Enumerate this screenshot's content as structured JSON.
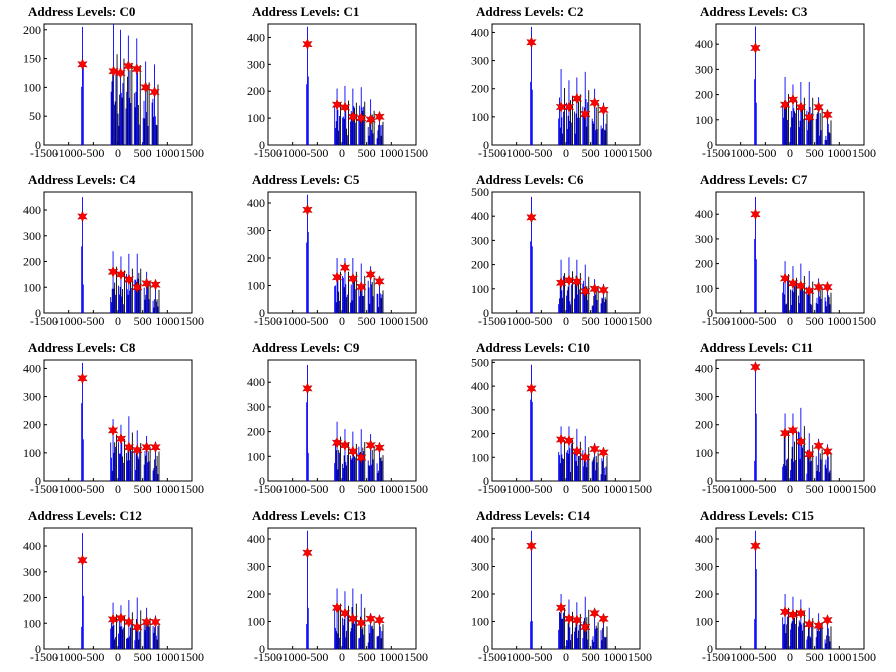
{
  "colors": {
    "bar": "#0000ff",
    "bar_dark": "#000000",
    "marker": "#ff0000",
    "axis": "#000000"
  },
  "chart_data": [
    {
      "type": "bar",
      "title": "Address Levels: C0",
      "xlim": [
        -1500,
        1500
      ],
      "xticks": [
        -1500,
        -1000,
        -500,
        0,
        500,
        1000,
        1500
      ],
      "ylim": [
        0,
        210
      ],
      "yticks": [
        0,
        50,
        100,
        150,
        200
      ],
      "peaks_x": [
        -720,
        -90,
        50,
        210,
        380,
        560,
        740
      ],
      "bar_tops": [
        205,
        210,
        200,
        190,
        185,
        145,
        140
      ],
      "markers_y": [
        140,
        128,
        125,
        137,
        132,
        100,
        92
      ]
    },
    {
      "type": "bar",
      "title": "Address Levels: C1",
      "xlim": [
        -1500,
        1500
      ],
      "xticks": [
        -1500,
        -1000,
        -500,
        0,
        500,
        1000,
        1500
      ],
      "ylim": [
        0,
        450
      ],
      "yticks": [
        0,
        100,
        200,
        300,
        400
      ],
      "peaks_x": [
        -700,
        -100,
        60,
        220,
        390,
        580,
        760
      ],
      "bar_tops": [
        440,
        210,
        220,
        210,
        215,
        170,
        115
      ],
      "markers_y": [
        375,
        150,
        140,
        105,
        100,
        95,
        105
      ]
    },
    {
      "type": "bar",
      "title": "Address Levels: C2",
      "xlim": [
        -1500,
        1500
      ],
      "xticks": [
        -1500,
        -1000,
        -500,
        0,
        500,
        1000,
        1500
      ],
      "ylim": [
        0,
        430
      ],
      "yticks": [
        0,
        100,
        200,
        300,
        400
      ],
      "peaks_x": [
        -700,
        -100,
        60,
        220,
        390,
        580,
        760
      ],
      "bar_tops": [
        420,
        270,
        230,
        240,
        260,
        200,
        150
      ],
      "markers_y": [
        365,
        135,
        135,
        165,
        110,
        150,
        125
      ]
    },
    {
      "type": "bar",
      "title": "Address Levels: C3",
      "xlim": [
        -1500,
        1500
      ],
      "xticks": [
        -1500,
        -1000,
        -500,
        0,
        500,
        1000,
        1500
      ],
      "ylim": [
        0,
        480
      ],
      "yticks": [
        0,
        100,
        200,
        300,
        400
      ],
      "peaks_x": [
        -700,
        -100,
        60,
        220,
        390,
        580,
        760
      ],
      "bar_tops": [
        470,
        270,
        240,
        250,
        250,
        190,
        130
      ],
      "markers_y": [
        385,
        160,
        180,
        150,
        110,
        150,
        120
      ]
    },
    {
      "type": "bar",
      "title": "Address Levels: C4",
      "xlim": [
        -1500,
        1500
      ],
      "xticks": [
        -1500,
        -1000,
        -500,
        0,
        500,
        1000,
        1500
      ],
      "ylim": [
        0,
        470
      ],
      "yticks": [
        0,
        100,
        200,
        300,
        400
      ],
      "peaks_x": [
        -720,
        -100,
        60,
        220,
        390,
        580,
        760
      ],
      "bar_tops": [
        450,
        240,
        220,
        230,
        230,
        160,
        120
      ],
      "markers_y": [
        375,
        160,
        150,
        130,
        100,
        115,
        110
      ]
    },
    {
      "type": "bar",
      "title": "Address Levels: C5",
      "xlim": [
        -1500,
        1500
      ],
      "xticks": [
        -1500,
        -1000,
        -500,
        0,
        500,
        1000,
        1500
      ],
      "ylim": [
        0,
        440
      ],
      "yticks": [
        0,
        100,
        200,
        300,
        400
      ],
      "peaks_x": [
        -700,
        -100,
        60,
        220,
        390,
        580,
        760
      ],
      "bar_tops": [
        430,
        200,
        200,
        200,
        180,
        170,
        110
      ],
      "markers_y": [
        375,
        130,
        165,
        125,
        95,
        140,
        115
      ]
    },
    {
      "type": "bar",
      "title": "Address Levels: C6",
      "xlim": [
        -1500,
        1500
      ],
      "xticks": [
        -1500,
        -1000,
        -500,
        0,
        500,
        1000,
        1500
      ],
      "ylim": [
        0,
        500
      ],
      "yticks": [
        0,
        100,
        200,
        300,
        400,
        500
      ],
      "peaks_x": [
        -700,
        -100,
        60,
        220,
        390,
        580,
        760
      ],
      "bar_tops": [
        480,
        220,
        230,
        220,
        200,
        140,
        120
      ],
      "markers_y": [
        395,
        125,
        135,
        130,
        90,
        100,
        95
      ]
    },
    {
      "type": "bar",
      "title": "Address Levels: C7",
      "xlim": [
        -1500,
        1500
      ],
      "xticks": [
        -1500,
        -1000,
        -500,
        0,
        500,
        1000,
        1500
      ],
      "ylim": [
        0,
        490
      ],
      "yticks": [
        0,
        100,
        200,
        300,
        400
      ],
      "peaks_x": [
        -700,
        -100,
        60,
        220,
        390,
        580,
        760
      ],
      "bar_tops": [
        470,
        210,
        190,
        200,
        170,
        140,
        110
      ],
      "markers_y": [
        400,
        140,
        120,
        110,
        90,
        105,
        105
      ]
    },
    {
      "type": "bar",
      "title": "Address Levels: C8",
      "xlim": [
        -1500,
        1500
      ],
      "xticks": [
        -1500,
        -1000,
        -500,
        0,
        500,
        1000,
        1500
      ],
      "ylim": [
        0,
        430
      ],
      "yticks": [
        0,
        100,
        200,
        300,
        400
      ],
      "peaks_x": [
        -720,
        -100,
        60,
        220,
        390,
        580,
        760
      ],
      "bar_tops": [
        420,
        220,
        200,
        230,
        180,
        160,
        140
      ],
      "markers_y": [
        365,
        180,
        150,
        120,
        110,
        120,
        120
      ]
    },
    {
      "type": "bar",
      "title": "Address Levels: C9",
      "xlim": [
        -1500,
        1500
      ],
      "xticks": [
        -1500,
        -1000,
        -500,
        0,
        500,
        1000,
        1500
      ],
      "ylim": [
        0,
        490
      ],
      "yticks": [
        0,
        100,
        200,
        300,
        400
      ],
      "peaks_x": [
        -700,
        -100,
        60,
        220,
        390,
        580,
        760
      ],
      "bar_tops": [
        470,
        240,
        210,
        200,
        210,
        190,
        140
      ],
      "markers_y": [
        375,
        155,
        145,
        120,
        95,
        145,
        135
      ]
    },
    {
      "type": "bar",
      "title": "Address Levels: C10",
      "xlim": [
        -1500,
        1500
      ],
      "xticks": [
        -1500,
        -1000,
        -500,
        0,
        500,
        1000,
        1500
      ],
      "ylim": [
        0,
        510
      ],
      "yticks": [
        0,
        100,
        200,
        300,
        400,
        500
      ],
      "peaks_x": [
        -700,
        -100,
        60,
        220,
        390,
        580,
        760
      ],
      "bar_tops": [
        490,
        230,
        230,
        220,
        190,
        160,
        140
      ],
      "markers_y": [
        390,
        175,
        170,
        125,
        100,
        135,
        120
      ]
    },
    {
      "type": "bar",
      "title": "Address Levels: C11",
      "xlim": [
        -1500,
        1500
      ],
      "xticks": [
        -1500,
        -1000,
        -500,
        0,
        500,
        1000,
        1500
      ],
      "ylim": [
        0,
        430
      ],
      "yticks": [
        0,
        100,
        200,
        300,
        400
      ],
      "peaks_x": [
        -700,
        -100,
        60,
        220,
        390,
        580,
        760
      ],
      "bar_tops": [
        420,
        240,
        240,
        260,
        170,
        150,
        130
      ],
      "markers_y": [
        405,
        170,
        180,
        140,
        95,
        125,
        105
      ]
    },
    {
      "type": "bar",
      "title": "Address Levels: C12",
      "xlim": [
        -1500,
        1500
      ],
      "xticks": [
        -1500,
        -1000,
        -500,
        0,
        500,
        1000,
        1500
      ],
      "ylim": [
        0,
        470
      ],
      "yticks": [
        0,
        100,
        200,
        300,
        400
      ],
      "peaks_x": [
        -720,
        -100,
        60,
        220,
        390,
        580,
        760
      ],
      "bar_tops": [
        450,
        180,
        170,
        190,
        200,
        160,
        130
      ],
      "markers_y": [
        345,
        115,
        120,
        105,
        85,
        105,
        105
      ]
    },
    {
      "type": "bar",
      "title": "Address Levels: C13",
      "xlim": [
        -1500,
        1500
      ],
      "xticks": [
        -1500,
        -1000,
        -500,
        0,
        500,
        1000,
        1500
      ],
      "ylim": [
        0,
        440
      ],
      "yticks": [
        0,
        100,
        200,
        300,
        400
      ],
      "peaks_x": [
        -700,
        -100,
        60,
        220,
        390,
        580,
        760
      ],
      "bar_tops": [
        430,
        220,
        210,
        220,
        200,
        130,
        120
      ],
      "markers_y": [
        350,
        150,
        130,
        110,
        95,
        110,
        105
      ]
    },
    {
      "type": "bar",
      "title": "Address Levels: C14",
      "xlim": [
        -1500,
        1500
      ],
      "xticks": [
        -1500,
        -1000,
        -500,
        0,
        500,
        1000,
        1500
      ],
      "ylim": [
        0,
        440
      ],
      "yticks": [
        0,
        100,
        200,
        300,
        400
      ],
      "peaks_x": [
        -700,
        -100,
        60,
        220,
        390,
        580,
        760
      ],
      "bar_tops": [
        430,
        200,
        180,
        170,
        190,
        130,
        110
      ],
      "markers_y": [
        375,
        150,
        110,
        105,
        80,
        130,
        110
      ]
    },
    {
      "type": "bar",
      "title": "Address Levels: C15",
      "xlim": [
        -1500,
        1500
      ],
      "xticks": [
        -1500,
        -1000,
        -500,
        0,
        500,
        1000,
        1500
      ],
      "ylim": [
        0,
        440
      ],
      "yticks": [
        0,
        100,
        200,
        300,
        400
      ],
      "peaks_x": [
        -700,
        -100,
        60,
        220,
        390,
        580,
        760
      ],
      "bar_tops": [
        430,
        200,
        190,
        180,
        150,
        130,
        110
      ],
      "markers_y": [
        375,
        135,
        125,
        130,
        90,
        85,
        105
      ]
    }
  ]
}
